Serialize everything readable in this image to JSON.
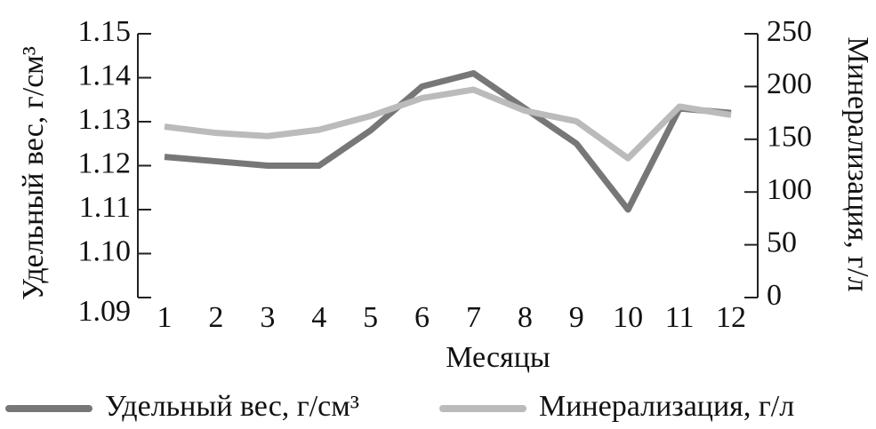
{
  "chart_data": {
    "type": "line",
    "x_label": "Месяцы",
    "y_label": "Удельный вес, г/см³",
    "y2_label": "Минерализация, г/л",
    "categories": [
      "1",
      "2",
      "3",
      "4",
      "5",
      "6",
      "7",
      "8",
      "9",
      "10",
      "11",
      "12"
    ],
    "series": [
      {
        "name": "Удельный вес, г/см³",
        "color": "#777777",
        "values": [
          1.122,
          1.121,
          1.12,
          1.12,
          1.128,
          1.138,
          1.141,
          1.133,
          1.125,
          1.11,
          1.133,
          1.132
        ]
      },
      {
        "name": "Минерализация, г/л",
        "color": "#bbbbbb",
        "axis": "y2",
        "values": [
          162,
          156,
          153,
          159,
          172,
          189,
          197,
          177,
          167,
          132,
          181,
          173
        ]
      }
    ],
    "ylim": [
      1.09,
      1.15
    ],
    "yticks": [
      {
        "value": 1.09,
        "label": "1.09"
      },
      {
        "value": 1.1,
        "label": "1.10"
      },
      1.11,
      1.12,
      1.13,
      1.14,
      1.15
    ],
    "y2lim": [
      0,
      250
    ],
    "y2ticks": [
      0,
      50,
      100,
      150,
      200,
      250
    ],
    "legend": "bottom"
  }
}
